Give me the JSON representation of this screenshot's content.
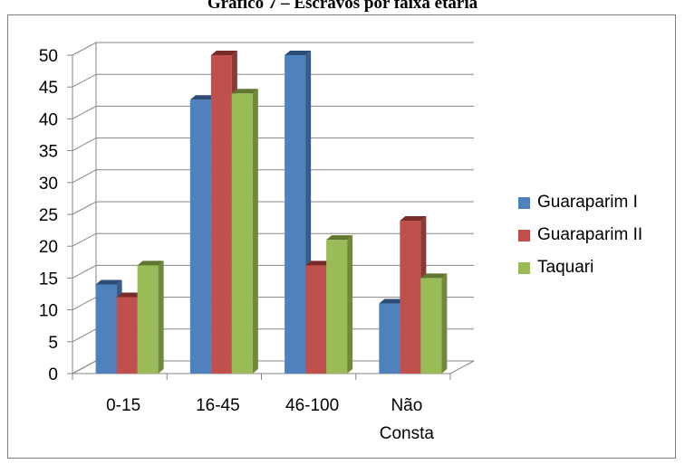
{
  "chart_data": {
    "type": "bar",
    "title": "Gráfico 7 – Escravos por faixa etária",
    "categories": [
      "0-15",
      "16-45",
      "46-100",
      "Não\nConsta"
    ],
    "series": [
      {
        "name": "Guaraparim I",
        "values": [
          14,
          43,
          50,
          11
        ],
        "color": "#4F81BD",
        "side_color": "#385D8A",
        "top_color": "#2C4D75"
      },
      {
        "name": "Guaraparim II",
        "values": [
          12,
          50,
          17,
          24
        ],
        "color": "#C0504D",
        "side_color": "#8C3836",
        "top_color": "#772C2A"
      },
      {
        "name": "Taquari",
        "values": [
          17,
          44,
          21,
          15
        ],
        "color": "#9BBB59",
        "side_color": "#71893F",
        "top_color": "#5F7530"
      }
    ],
    "ylim": [
      0,
      50
    ],
    "yticks": [
      0,
      5,
      10,
      15,
      20,
      25,
      30,
      35,
      40,
      45,
      50
    ],
    "grid": true,
    "legend_position": "right",
    "projection": "3d-clustered-column"
  }
}
